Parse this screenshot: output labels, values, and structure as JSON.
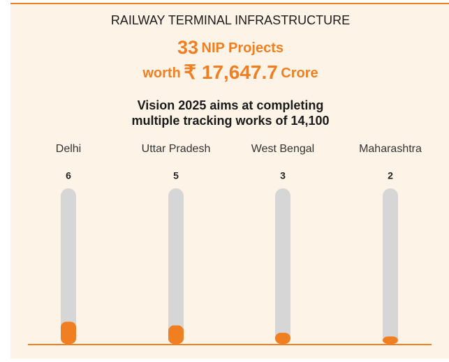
{
  "chart_data": {
    "type": "bar",
    "title": "RAILWAY TERMINAL INFRASTRUCTURE",
    "annotations": [
      "33",
      "NIP Projects",
      "worth",
      "₹ 17,647.7",
      "Crore"
    ],
    "subtitle": [
      "Vision 2025 aims at completing",
      "multiple tracking works of 14,100"
    ],
    "categories": [
      "Delhi",
      "Uttar Pradesh",
      "West Bengal",
      "Maharashtra"
    ],
    "values": [
      6,
      5,
      3,
      2
    ],
    "color": "#f07f22"
  }
}
